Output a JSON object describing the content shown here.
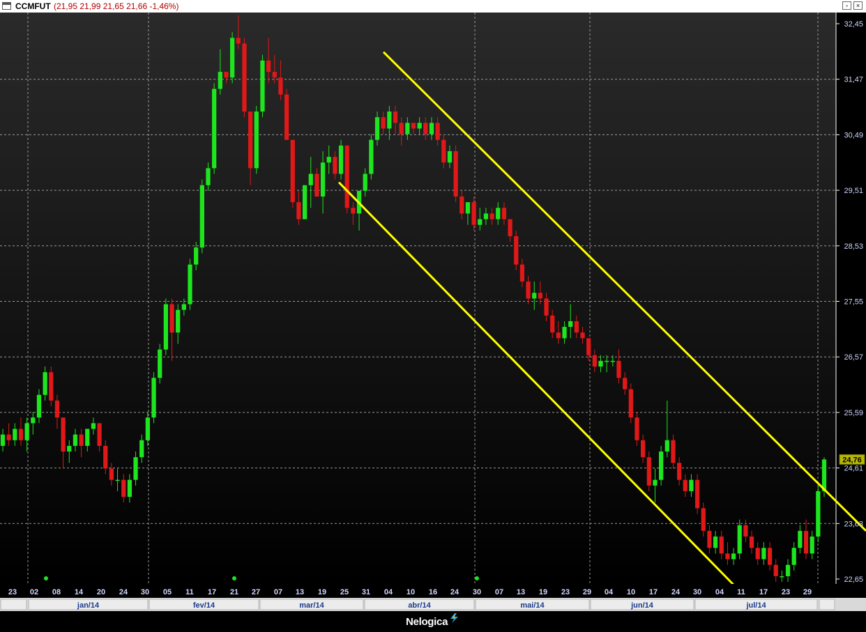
{
  "window": {
    "symbol": "CCMFUT",
    "quote": "(21,95  21,99  21,65  21,66  -1,46%)",
    "restore_glyph": "▫",
    "close_glyph": "×"
  },
  "brand": {
    "name": "Nelogica"
  },
  "colors": {
    "background_top": "#2a2a2a",
    "background_bottom": "#000000",
    "up": "#1ee61e",
    "down": "#e01818",
    "trendline": "#ffff00",
    "axis_text": "#cfd8ff",
    "last_price_badge": "#b8b800"
  },
  "chart_data": {
    "type": "candlestick",
    "ylim": [
      22.4,
      32.7
    ],
    "yticks": [
      "32,45",
      "31,47",
      "30,49",
      "29,51",
      "28,53",
      "27,55",
      "26,57",
      "25,59",
      "24,61",
      "23,63",
      "22,65"
    ],
    "ytick_values": [
      32.45,
      31.47,
      30.49,
      29.51,
      28.53,
      27.55,
      26.57,
      25.59,
      24.61,
      23.63,
      22.65
    ],
    "last_price": "24,76",
    "x_day_labels": [
      "23",
      "02",
      "08",
      "14",
      "20",
      "24",
      "30",
      "05",
      "11",
      "17",
      "21",
      "27",
      "07",
      "13",
      "19",
      "25",
      "31",
      "04",
      "10",
      "16",
      "24",
      "30",
      "07",
      "13",
      "19",
      "23",
      "29",
      "04",
      "10",
      "17",
      "24",
      "30",
      "04",
      "11",
      "17",
      "23",
      "29"
    ],
    "x_month_labels": [
      "jan/14",
      "fev/14",
      "mar/14",
      "abr/14",
      "mai/14",
      "jun/14",
      "jul/14"
    ],
    "grid": true,
    "candles_ohlc": [
      [
        25.0,
        25.3,
        24.9,
        25.2
      ],
      [
        25.2,
        25.4,
        25.0,
        25.1
      ],
      [
        25.1,
        25.4,
        25.0,
        25.3
      ],
      [
        25.3,
        25.5,
        25.0,
        25.1
      ],
      [
        25.1,
        25.5,
        24.9,
        25.4
      ],
      [
        25.4,
        25.6,
        25.2,
        25.5
      ],
      [
        25.5,
        26.0,
        25.4,
        25.9
      ],
      [
        25.9,
        26.4,
        25.8,
        26.3
      ],
      [
        26.3,
        26.4,
        25.7,
        25.8
      ],
      [
        25.8,
        25.9,
        25.3,
        25.5
      ],
      [
        25.5,
        25.5,
        24.6,
        24.9
      ],
      [
        24.9,
        25.1,
        24.7,
        25.0
      ],
      [
        25.0,
        25.3,
        24.9,
        25.2
      ],
      [
        25.2,
        25.3,
        24.8,
        25.0
      ],
      [
        25.0,
        25.3,
        24.9,
        25.3
      ],
      [
        25.3,
        25.5,
        25.2,
        25.4
      ],
      [
        25.4,
        25.4,
        24.9,
        25.0
      ],
      [
        25.0,
        25.1,
        24.5,
        24.6
      ],
      [
        24.6,
        24.7,
        24.3,
        24.4
      ],
      [
        24.4,
        24.6,
        24.2,
        24.4
      ],
      [
        24.4,
        24.5,
        24.0,
        24.1
      ],
      [
        24.1,
        24.5,
        24.0,
        24.4
      ],
      [
        24.4,
        24.9,
        24.3,
        24.8
      ],
      [
        24.8,
        25.2,
        24.7,
        25.1
      ],
      [
        25.1,
        25.6,
        25.0,
        25.5
      ],
      [
        25.5,
        26.3,
        25.4,
        26.2
      ],
      [
        26.2,
        26.8,
        26.1,
        26.7
      ],
      [
        26.7,
        27.6,
        26.6,
        27.5
      ],
      [
        27.5,
        27.6,
        26.5,
        27.0
      ],
      [
        27.0,
        27.5,
        26.8,
        27.4
      ],
      [
        27.4,
        27.6,
        27.3,
        27.5
      ],
      [
        27.5,
        28.3,
        27.4,
        28.2
      ],
      [
        28.2,
        28.6,
        28.1,
        28.5
      ],
      [
        28.5,
        29.7,
        28.4,
        29.6
      ],
      [
        29.6,
        30.0,
        29.5,
        29.9
      ],
      [
        29.9,
        31.4,
        29.8,
        31.3
      ],
      [
        31.3,
        32.0,
        31.2,
        31.6
      ],
      [
        31.6,
        31.6,
        31.4,
        31.5
      ],
      [
        31.5,
        32.3,
        31.4,
        32.2
      ],
      [
        32.2,
        32.6,
        32.0,
        32.1
      ],
      [
        32.1,
        32.2,
        30.8,
        30.9
      ],
      [
        30.9,
        30.9,
        29.6,
        29.9
      ],
      [
        29.9,
        31.0,
        29.8,
        30.9
      ],
      [
        30.9,
        31.9,
        30.8,
        31.8
      ],
      [
        31.8,
        32.2,
        31.4,
        31.6
      ],
      [
        31.6,
        31.9,
        31.4,
        31.5
      ],
      [
        31.5,
        31.8,
        31.1,
        31.2
      ],
      [
        31.2,
        31.3,
        30.4,
        30.4
      ],
      [
        30.4,
        30.4,
        29.2,
        29.3
      ],
      [
        29.3,
        29.5,
        28.9,
        29.0
      ],
      [
        29.0,
        29.6,
        29.0,
        29.6
      ],
      [
        29.6,
        30.1,
        29.2,
        29.8
      ],
      [
        29.8,
        29.9,
        29.4,
        29.4
      ],
      [
        29.4,
        30.2,
        29.1,
        30.0
      ],
      [
        30.0,
        30.3,
        29.8,
        30.1
      ],
      [
        30.1,
        30.2,
        29.7,
        29.8
      ],
      [
        29.8,
        30.4,
        29.7,
        30.3
      ],
      [
        30.3,
        30.3,
        29.1,
        29.2
      ],
      [
        29.2,
        29.3,
        28.9,
        29.1
      ],
      [
        29.1,
        29.5,
        28.8,
        29.5
      ],
      [
        29.5,
        29.9,
        29.4,
        29.8
      ],
      [
        29.8,
        30.5,
        29.7,
        30.4
      ],
      [
        30.4,
        30.9,
        30.3,
        30.8
      ],
      [
        30.8,
        30.9,
        30.5,
        30.6
      ],
      [
        30.6,
        31.0,
        30.4,
        30.9
      ],
      [
        30.9,
        31.0,
        30.5,
        30.7
      ],
      [
        30.7,
        30.8,
        30.3,
        30.5
      ],
      [
        30.5,
        30.8,
        30.4,
        30.7
      ],
      [
        30.7,
        30.7,
        30.5,
        30.6
      ],
      [
        30.6,
        30.8,
        30.5,
        30.7
      ],
      [
        30.7,
        30.8,
        30.4,
        30.5
      ],
      [
        30.5,
        30.8,
        30.4,
        30.7
      ],
      [
        30.7,
        30.8,
        30.3,
        30.4
      ],
      [
        30.4,
        30.5,
        29.9,
        30.0
      ],
      [
        30.0,
        30.3,
        29.9,
        30.2
      ],
      [
        30.2,
        30.3,
        29.3,
        29.4
      ],
      [
        29.4,
        29.5,
        29.0,
        29.1
      ],
      [
        29.1,
        29.3,
        28.9,
        29.3
      ],
      [
        29.3,
        29.4,
        28.8,
        28.9
      ],
      [
        28.9,
        29.2,
        28.8,
        29.0
      ],
      [
        29.0,
        29.2,
        28.9,
        29.1
      ],
      [
        29.1,
        29.2,
        28.9,
        29.0
      ],
      [
        29.0,
        29.3,
        28.9,
        29.2
      ],
      [
        29.2,
        29.3,
        28.9,
        29.0
      ],
      [
        29.0,
        29.0,
        28.6,
        28.7
      ],
      [
        28.7,
        28.8,
        28.1,
        28.2
      ],
      [
        28.2,
        28.3,
        27.8,
        27.9
      ],
      [
        27.9,
        28.0,
        27.5,
        27.6
      ],
      [
        27.6,
        27.9,
        27.4,
        27.7
      ],
      [
        27.7,
        27.9,
        27.5,
        27.6
      ],
      [
        27.6,
        27.7,
        27.2,
        27.3
      ],
      [
        27.3,
        27.4,
        26.9,
        27.0
      ],
      [
        27.0,
        27.2,
        26.8,
        26.9
      ],
      [
        26.9,
        27.2,
        26.8,
        27.1
      ],
      [
        27.1,
        27.5,
        26.9,
        27.2
      ],
      [
        27.2,
        27.3,
        26.9,
        27.0
      ],
      [
        27.0,
        27.1,
        26.8,
        26.9
      ],
      [
        26.9,
        26.9,
        26.5,
        26.6
      ],
      [
        26.6,
        26.7,
        26.3,
        26.4
      ],
      [
        26.4,
        26.6,
        26.3,
        26.5
      ],
      [
        26.5,
        26.6,
        26.3,
        26.5
      ],
      [
        26.5,
        26.6,
        26.4,
        26.5
      ],
      [
        26.5,
        26.7,
        26.1,
        26.2
      ],
      [
        26.2,
        26.3,
        25.9,
        26.0
      ],
      [
        26.0,
        26.1,
        25.4,
        25.5
      ],
      [
        25.5,
        25.6,
        25.0,
        25.1
      ],
      [
        25.1,
        25.2,
        24.7,
        24.8
      ],
      [
        24.8,
        24.9,
        24.2,
        24.3
      ],
      [
        24.3,
        24.6,
        24.0,
        24.4
      ],
      [
        24.4,
        25.0,
        24.3,
        24.9
      ],
      [
        24.9,
        25.8,
        24.8,
        25.1
      ],
      [
        25.1,
        25.2,
        24.6,
        24.7
      ],
      [
        24.7,
        24.8,
        24.3,
        24.4
      ],
      [
        24.4,
        24.5,
        24.1,
        24.2
      ],
      [
        24.2,
        24.5,
        24.1,
        24.4
      ],
      [
        24.4,
        24.5,
        23.8,
        23.9
      ],
      [
        23.9,
        24.0,
        23.4,
        23.5
      ],
      [
        23.5,
        23.6,
        23.1,
        23.2
      ],
      [
        23.2,
        23.5,
        23.1,
        23.4
      ],
      [
        23.4,
        23.5,
        23.0,
        23.1
      ],
      [
        23.1,
        23.3,
        22.9,
        23.0
      ],
      [
        23.0,
        23.2,
        22.9,
        23.1
      ],
      [
        23.1,
        23.7,
        23.0,
        23.6
      ],
      [
        23.6,
        23.7,
        23.3,
        23.4
      ],
      [
        23.4,
        23.5,
        23.1,
        23.2
      ],
      [
        23.2,
        23.3,
        22.9,
        23.0
      ],
      [
        23.0,
        23.3,
        22.9,
        23.2
      ],
      [
        23.2,
        23.3,
        22.8,
        22.9
      ],
      [
        22.9,
        23.0,
        22.6,
        22.7
      ],
      [
        22.7,
        22.8,
        22.6,
        22.7
      ],
      [
        22.7,
        23.0,
        22.6,
        22.9
      ],
      [
        22.9,
        23.3,
        22.8,
        23.2
      ],
      [
        23.2,
        23.6,
        23.1,
        23.5
      ],
      [
        23.5,
        23.7,
        23.0,
        23.1
      ],
      [
        23.1,
        23.5,
        23.0,
        23.4
      ],
      [
        23.4,
        24.3,
        23.3,
        24.2
      ],
      [
        24.2,
        24.8,
        24.1,
        24.76
      ]
    ],
    "trendlines": [
      {
        "from": {
          "date": "28/mar/14",
          "price": 31.95
        },
        "to": {
          "date": "04/jul/14",
          "price": 23.5
        }
      },
      {
        "from": {
          "date": "21/mar/14",
          "price": 29.65
        },
        "to": {
          "date": "17/jul/14",
          "price": 22.55
        }
      }
    ]
  }
}
